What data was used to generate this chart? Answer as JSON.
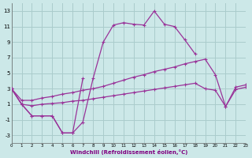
{
  "background_color": "#cce8e8",
  "grid_color": "#aacccc",
  "line_color": "#993399",
  "series1_x": [
    0,
    1,
    2,
    3,
    4,
    5,
    6,
    7,
    8,
    9,
    10,
    11,
    12,
    13,
    14,
    15,
    16,
    17,
    18
  ],
  "series1_y": [
    3.0,
    1.0,
    -0.5,
    -0.5,
    -0.5,
    -2.7,
    -2.7,
    -1.3,
    4.3,
    9.0,
    11.2,
    11.5,
    11.3,
    11.2,
    13.0,
    11.3,
    11.0,
    9.3,
    7.5
  ],
  "series2_x": [
    0,
    1,
    2,
    3,
    4,
    5,
    6,
    7
  ],
  "series2_y": [
    3.0,
    1.0,
    -0.5,
    -0.5,
    -0.5,
    -2.7,
    -2.7,
    4.3
  ],
  "series3_x": [
    0,
    1,
    2,
    3,
    4,
    5,
    6,
    7,
    8,
    9,
    10,
    11,
    12,
    13,
    14,
    15,
    16,
    17,
    18,
    19,
    20,
    21,
    22,
    23
  ],
  "series3_y": [
    3.0,
    1.5,
    1.5,
    1.8,
    2.0,
    2.3,
    2.5,
    2.8,
    3.0,
    3.3,
    3.7,
    4.1,
    4.5,
    4.8,
    5.2,
    5.5,
    5.8,
    6.2,
    6.5,
    6.8,
    4.8,
    0.7,
    3.2,
    3.5
  ],
  "series4_x": [
    0,
    1,
    2,
    3,
    4,
    5,
    6,
    7,
    8,
    9,
    10,
    11,
    12,
    13,
    14,
    15,
    16,
    17,
    18,
    19,
    20,
    21,
    22,
    23
  ],
  "series4_y": [
    3.0,
    1.0,
    0.8,
    1.0,
    1.1,
    1.2,
    1.4,
    1.5,
    1.7,
    1.9,
    2.1,
    2.3,
    2.5,
    2.7,
    2.9,
    3.1,
    3.3,
    3.5,
    3.7,
    3.0,
    2.8,
    0.7,
    2.9,
    3.2
  ],
  "xlabel": "Windchill (Refroidissement éolien,°C)",
  "ytick_labels": [
    "-3",
    "-1",
    "1",
    "3",
    "5",
    "7",
    "9",
    "11",
    "13"
  ],
  "ytick_vals": [
    -3,
    -1,
    1,
    3,
    5,
    7,
    9,
    11,
    13
  ],
  "xtick_vals": [
    0,
    1,
    2,
    3,
    4,
    5,
    6,
    7,
    8,
    9,
    10,
    11,
    12,
    13,
    14,
    15,
    16,
    17,
    18,
    19,
    20,
    21,
    22,
    23
  ],
  "xlim": [
    0,
    23
  ],
  "ylim": [
    -4,
    14
  ]
}
